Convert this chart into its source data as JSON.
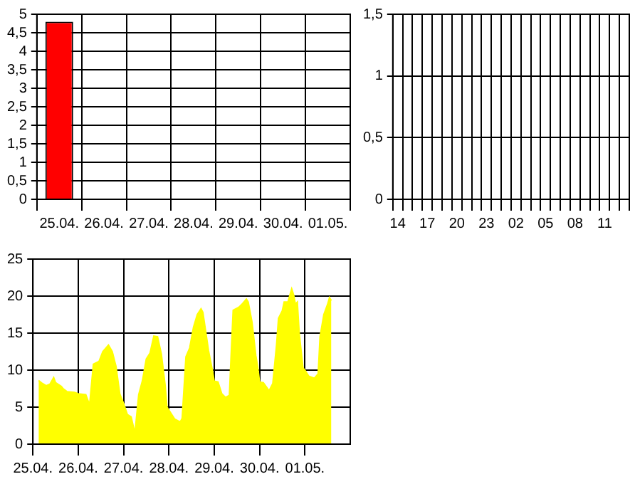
{
  "chart_data": [
    {
      "type": "bar",
      "categories": [
        "25.04.",
        "26.04.",
        "27.04.",
        "28.04.",
        "29.04.",
        "30.04.",
        "01.05."
      ],
      "values": [
        4.8,
        null,
        null,
        null,
        null,
        null,
        null
      ],
      "color": "#ff0000",
      "ylim": [
        0,
        5
      ],
      "yticks": [
        0,
        {
          "value": 0.5,
          "label": "0,5"
        },
        1,
        {
          "value": 1.5,
          "label": "1,5"
        },
        2,
        {
          "value": 2.5,
          "label": "2,5"
        },
        3,
        {
          "value": 3.5,
          "label": "3,5"
        },
        4,
        {
          "value": 4.5,
          "label": "4,5"
        },
        5
      ],
      "grid": true
    },
    {
      "type": "bar",
      "categories": [
        "14",
        null,
        null,
        "17",
        null,
        null,
        "20",
        null,
        null,
        "23",
        null,
        null,
        "02",
        null,
        null,
        "05",
        null,
        null,
        "08",
        null,
        null,
        "11",
        null,
        null
      ],
      "values": [
        0,
        0,
        0,
        0,
        0,
        0,
        0,
        0,
        0,
        0,
        0,
        0,
        0,
        0,
        0,
        0,
        0,
        0,
        0,
        0,
        0,
        0,
        0,
        0
      ],
      "color": "#ffffff",
      "ylim": [
        0,
        1.5
      ],
      "yticks": [
        0,
        {
          "value": 0.5,
          "label": "0,5"
        },
        1,
        {
          "value": 1.5,
          "label": "1,5"
        }
      ],
      "grid": true
    },
    {
      "type": "area",
      "x": [
        "--04-25T03:00",
        "--04-25T05:00",
        "--04-25T07:00",
        "--04-25T09:00",
        "--04-25T11:00",
        "--04-25T12:00",
        "--04-25T15:00",
        "--04-25T16:00",
        "--04-25T18:00",
        "--04-25T22:00",
        "--04-26T00:00",
        "--04-26T04:00",
        "--04-26T06:00",
        "--04-26T08:00",
        "--04-26T11:00",
        "--04-26T13:00",
        "--04-26T16:00",
        "--04-26T18:00",
        "--04-26T20:00",
        "--04-26T22:00",
        "--04-27T00:00",
        "--04-27T02:00",
        "--04-27T04:00",
        "--04-27T06:00",
        "--04-27T08:00",
        "--04-27T10:00",
        "--04-27T12:00",
        "--04-27T14:00",
        "--04-27T16:00",
        "--04-27T18:00",
        "--04-27T20:00",
        "--04-27T22:00",
        "--04-27T23:00",
        "--04-28T01:00",
        "--04-28T03:00",
        "--04-28T06:00",
        "--04-28T07:00",
        "--04-28T09:00",
        "--04-28T11:00",
        "--04-28T13:00",
        "--04-28T15:00",
        "--04-28T17:00",
        "--04-28T18:00",
        "--04-28T21:00",
        "--04-28T23:00",
        "--04-29T00:00",
        "--04-29T02:00",
        "--04-29T04:00",
        "--04-29T06:00",
        "--04-29T08:00",
        "--04-29T09:00",
        "--04-29T10:00",
        "--04-29T13:00",
        "--04-29T15:00",
        "--04-29T17:00",
        "--04-29T18:00",
        "--04-29T20:00",
        "--04-29T22:00",
        "--04-29T23:00",
        "--04-30T00:00",
        "--04-30T02:00",
        "--04-30T04:00",
        "--04-30T05:00",
        "--04-30T07:00",
        "--04-30T09:00",
        "--04-30T10:00",
        "--04-30T12:00",
        "--04-30T13:00",
        "--04-30T15:00",
        "--04-30T17:00",
        "--04-30T18:00",
        "--04-30T19:00",
        "--04-30T20:00",
        "--04-30T21:00",
        "--04-30T23:00",
        "--05-01T00:00",
        "--05-01T02:00",
        "--05-01T05:00",
        "--05-01T07:00",
        "--05-01T08:00",
        "--05-01T10:00",
        "--05-01T12:00",
        "--05-01T13:00",
        "--05-01T14:00"
      ],
      "values": [
        8.6,
        8.2,
        7.9,
        8.1,
        9.0,
        8.3,
        7.8,
        7.5,
        7.1,
        7.0,
        6.8,
        6.7,
        5.3,
        10.8,
        11.2,
        12.5,
        13.4,
        12.5,
        10.5,
        6.8,
        5.5,
        4.0,
        3.7,
        1.5,
        6.7,
        8.6,
        11.5,
        12.3,
        14.6,
        14.5,
        12.2,
        8.0,
        5.0,
        4.2,
        3.4,
        3.0,
        3.5,
        11.8,
        13.0,
        15.8,
        17.5,
        18.3,
        17.8,
        12.6,
        10.0,
        8.5,
        8.4,
        6.8,
        6.3,
        6.6,
        12.5,
        18.1,
        18.5,
        19.0,
        19.6,
        19.2,
        16.5,
        12.0,
        10.5,
        8.4,
        8.3,
        7.6,
        7.2,
        8.2,
        13.5,
        17.0,
        18.0,
        19.2,
        19.2,
        21.0,
        20.2,
        18.9,
        19.2,
        15.0,
        10.3,
        10.0,
        9.2,
        8.9,
        9.5,
        14.5,
        17.5,
        18.9,
        19.8,
        19.4
      ],
      "color": "#ffff00",
      "xlim": [
        "--04-25",
        "--05-02"
      ],
      "xticks": [
        {
          "value": "--04-25",
          "label": "25.04."
        },
        {
          "value": "--04-26",
          "label": "26.04."
        },
        {
          "value": "--04-27",
          "label": "27.04."
        },
        {
          "value": "--04-28",
          "label": "28.04."
        },
        {
          "value": "--04-29",
          "label": "29.04."
        },
        {
          "value": "--04-30",
          "label": "30.04."
        },
        {
          "value": "--05-01",
          "label": "01.05."
        }
      ],
      "ylim": [
        0,
        25
      ],
      "yticks": [
        0,
        5,
        10,
        15,
        20,
        25
      ],
      "grid": true
    }
  ]
}
